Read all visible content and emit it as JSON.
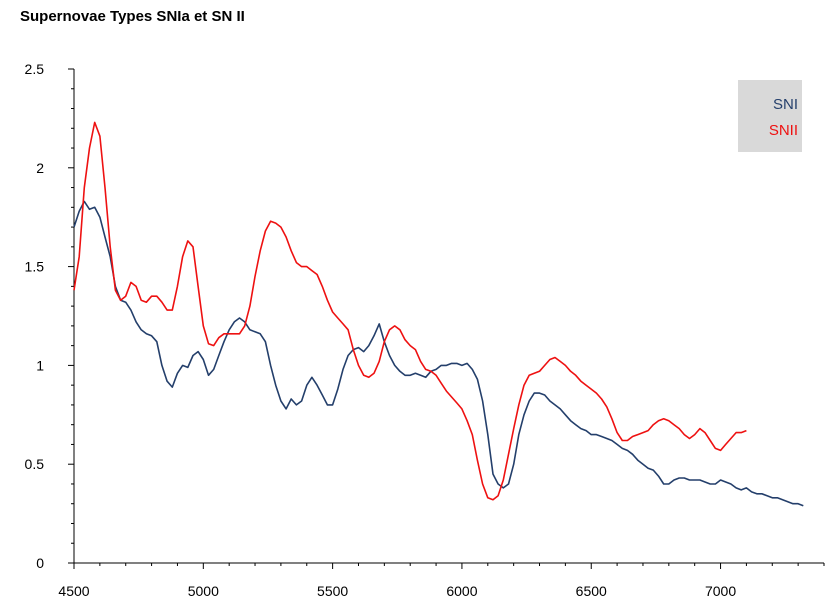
{
  "chart_data": {
    "type": "line",
    "title": "Supernovae Types SNIa et SN II",
    "xlabel": "",
    "ylabel": "",
    "xlim": [
      4500,
      7400
    ],
    "ylim": [
      0,
      2.5
    ],
    "x_ticks": [
      4500,
      5000,
      5500,
      6000,
      6500,
      7000
    ],
    "y_ticks": [
      0,
      0.5,
      1,
      1.5,
      2,
      2.5
    ],
    "y_tick_labels": [
      "0",
      "0.5",
      "1",
      "1.5",
      "2",
      "2.5"
    ],
    "grid": false,
    "legend_position": "top-right",
    "series": [
      {
        "name": "SNI",
        "color": "#243f6b",
        "points": [
          [
            4500,
            1.7
          ],
          [
            4520,
            1.78
          ],
          [
            4540,
            1.83
          ],
          [
            4560,
            1.79
          ],
          [
            4580,
            1.8
          ],
          [
            4600,
            1.75
          ],
          [
            4620,
            1.65
          ],
          [
            4640,
            1.55
          ],
          [
            4660,
            1.4
          ],
          [
            4680,
            1.33
          ],
          [
            4700,
            1.32
          ],
          [
            4720,
            1.28
          ],
          [
            4740,
            1.22
          ],
          [
            4760,
            1.18
          ],
          [
            4780,
            1.16
          ],
          [
            4800,
            1.15
          ],
          [
            4820,
            1.12
          ],
          [
            4840,
            1.0
          ],
          [
            4860,
            0.92
          ],
          [
            4880,
            0.89
          ],
          [
            4900,
            0.96
          ],
          [
            4920,
            1.0
          ],
          [
            4940,
            0.99
          ],
          [
            4960,
            1.05
          ],
          [
            4980,
            1.07
          ],
          [
            5000,
            1.03
          ],
          [
            5020,
            0.95
          ],
          [
            5040,
            0.98
          ],
          [
            5060,
            1.05
          ],
          [
            5080,
            1.12
          ],
          [
            5100,
            1.18
          ],
          [
            5120,
            1.22
          ],
          [
            5140,
            1.24
          ],
          [
            5160,
            1.22
          ],
          [
            5180,
            1.18
          ],
          [
            5200,
            1.17
          ],
          [
            5220,
            1.16
          ],
          [
            5240,
            1.12
          ],
          [
            5260,
            1.0
          ],
          [
            5280,
            0.9
          ],
          [
            5300,
            0.82
          ],
          [
            5320,
            0.78
          ],
          [
            5340,
            0.83
          ],
          [
            5360,
            0.8
          ],
          [
            5380,
            0.82
          ],
          [
            5400,
            0.9
          ],
          [
            5420,
            0.94
          ],
          [
            5440,
            0.9
          ],
          [
            5460,
            0.85
          ],
          [
            5480,
            0.8
          ],
          [
            5500,
            0.8
          ],
          [
            5520,
            0.88
          ],
          [
            5540,
            0.98
          ],
          [
            5560,
            1.05
          ],
          [
            5580,
            1.08
          ],
          [
            5600,
            1.09
          ],
          [
            5620,
            1.07
          ],
          [
            5640,
            1.1
          ],
          [
            5660,
            1.15
          ],
          [
            5680,
            1.21
          ],
          [
            5700,
            1.12
          ],
          [
            5720,
            1.05
          ],
          [
            5740,
            1.0
          ],
          [
            5760,
            0.97
          ],
          [
            5780,
            0.95
          ],
          [
            5800,
            0.95
          ],
          [
            5820,
            0.96
          ],
          [
            5840,
            0.95
          ],
          [
            5860,
            0.94
          ],
          [
            5880,
            0.97
          ],
          [
            5900,
            0.98
          ],
          [
            5920,
            1.0
          ],
          [
            5940,
            1.0
          ],
          [
            5960,
            1.01
          ],
          [
            5980,
            1.01
          ],
          [
            6000,
            1.0
          ],
          [
            6020,
            1.01
          ],
          [
            6040,
            0.98
          ],
          [
            6060,
            0.93
          ],
          [
            6080,
            0.82
          ],
          [
            6100,
            0.65
          ],
          [
            6120,
            0.45
          ],
          [
            6140,
            0.4
          ],
          [
            6160,
            0.38
          ],
          [
            6180,
            0.4
          ],
          [
            6200,
            0.5
          ],
          [
            6220,
            0.65
          ],
          [
            6240,
            0.75
          ],
          [
            6260,
            0.82
          ],
          [
            6280,
            0.86
          ],
          [
            6300,
            0.86
          ],
          [
            6320,
            0.85
          ],
          [
            6340,
            0.82
          ],
          [
            6360,
            0.8
          ],
          [
            6380,
            0.78
          ],
          [
            6400,
            0.75
          ],
          [
            6420,
            0.72
          ],
          [
            6440,
            0.7
          ],
          [
            6460,
            0.68
          ],
          [
            6480,
            0.67
          ],
          [
            6500,
            0.65
          ],
          [
            6520,
            0.65
          ],
          [
            6540,
            0.64
          ],
          [
            6560,
            0.63
          ],
          [
            6580,
            0.62
          ],
          [
            6600,
            0.6
          ],
          [
            6620,
            0.58
          ],
          [
            6640,
            0.57
          ],
          [
            6660,
            0.55
          ],
          [
            6680,
            0.52
          ],
          [
            6700,
            0.5
          ],
          [
            6720,
            0.48
          ],
          [
            6740,
            0.47
          ],
          [
            6760,
            0.44
          ],
          [
            6780,
            0.4
          ],
          [
            6800,
            0.4
          ],
          [
            6820,
            0.42
          ],
          [
            6840,
            0.43
          ],
          [
            6860,
            0.43
          ],
          [
            6880,
            0.42
          ],
          [
            6900,
            0.42
          ],
          [
            6920,
            0.42
          ],
          [
            6940,
            0.41
          ],
          [
            6960,
            0.4
          ],
          [
            6980,
            0.4
          ],
          [
            7000,
            0.42
          ],
          [
            7020,
            0.41
          ],
          [
            7040,
            0.4
          ],
          [
            7060,
            0.38
          ],
          [
            7080,
            0.37
          ],
          [
            7100,
            0.38
          ],
          [
            7120,
            0.36
          ],
          [
            7140,
            0.35
          ],
          [
            7160,
            0.35
          ],
          [
            7180,
            0.34
          ],
          [
            7200,
            0.33
          ],
          [
            7220,
            0.33
          ],
          [
            7240,
            0.32
          ],
          [
            7260,
            0.31
          ],
          [
            7280,
            0.3
          ],
          [
            7300,
            0.3
          ],
          [
            7320,
            0.29
          ]
        ]
      },
      {
        "name": "SNII",
        "color": "#ee1111",
        "points": [
          [
            4500,
            1.38
          ],
          [
            4520,
            1.55
          ],
          [
            4540,
            1.9
          ],
          [
            4560,
            2.1
          ],
          [
            4580,
            2.23
          ],
          [
            4600,
            2.16
          ],
          [
            4620,
            1.9
          ],
          [
            4640,
            1.6
          ],
          [
            4660,
            1.38
          ],
          [
            4680,
            1.33
          ],
          [
            4700,
            1.35
          ],
          [
            4720,
            1.42
          ],
          [
            4740,
            1.4
          ],
          [
            4760,
            1.33
          ],
          [
            4780,
            1.32
          ],
          [
            4800,
            1.35
          ],
          [
            4820,
            1.35
          ],
          [
            4840,
            1.32
          ],
          [
            4860,
            1.28
          ],
          [
            4880,
            1.28
          ],
          [
            4900,
            1.4
          ],
          [
            4920,
            1.55
          ],
          [
            4940,
            1.63
          ],
          [
            4960,
            1.6
          ],
          [
            4980,
            1.4
          ],
          [
            5000,
            1.2
          ],
          [
            5020,
            1.11
          ],
          [
            5040,
            1.1
          ],
          [
            5060,
            1.14
          ],
          [
            5080,
            1.16
          ],
          [
            5100,
            1.16
          ],
          [
            5120,
            1.16
          ],
          [
            5140,
            1.16
          ],
          [
            5160,
            1.2
          ],
          [
            5180,
            1.3
          ],
          [
            5200,
            1.45
          ],
          [
            5220,
            1.58
          ],
          [
            5240,
            1.68
          ],
          [
            5260,
            1.73
          ],
          [
            5280,
            1.72
          ],
          [
            5300,
            1.7
          ],
          [
            5320,
            1.65
          ],
          [
            5340,
            1.58
          ],
          [
            5360,
            1.52
          ],
          [
            5380,
            1.5
          ],
          [
            5400,
            1.5
          ],
          [
            5420,
            1.48
          ],
          [
            5440,
            1.46
          ],
          [
            5460,
            1.4
          ],
          [
            5480,
            1.33
          ],
          [
            5500,
            1.27
          ],
          [
            5520,
            1.24
          ],
          [
            5540,
            1.21
          ],
          [
            5560,
            1.18
          ],
          [
            5580,
            1.08
          ],
          [
            5600,
            1.0
          ],
          [
            5620,
            0.95
          ],
          [
            5640,
            0.94
          ],
          [
            5660,
            0.96
          ],
          [
            5680,
            1.02
          ],
          [
            5700,
            1.12
          ],
          [
            5720,
            1.18
          ],
          [
            5740,
            1.2
          ],
          [
            5760,
            1.18
          ],
          [
            5780,
            1.13
          ],
          [
            5800,
            1.1
          ],
          [
            5820,
            1.08
          ],
          [
            5840,
            1.02
          ],
          [
            5860,
            0.98
          ],
          [
            5880,
            0.97
          ],
          [
            5900,
            0.95
          ],
          [
            5920,
            0.91
          ],
          [
            5940,
            0.87
          ],
          [
            5960,
            0.84
          ],
          [
            5980,
            0.81
          ],
          [
            6000,
            0.78
          ],
          [
            6020,
            0.72
          ],
          [
            6040,
            0.65
          ],
          [
            6060,
            0.52
          ],
          [
            6080,
            0.4
          ],
          [
            6100,
            0.33
          ],
          [
            6120,
            0.32
          ],
          [
            6140,
            0.34
          ],
          [
            6160,
            0.42
          ],
          [
            6180,
            0.55
          ],
          [
            6200,
            0.68
          ],
          [
            6220,
            0.8
          ],
          [
            6240,
            0.9
          ],
          [
            6260,
            0.95
          ],
          [
            6280,
            0.96
          ],
          [
            6300,
            0.97
          ],
          [
            6320,
            1.0
          ],
          [
            6340,
            1.03
          ],
          [
            6360,
            1.04
          ],
          [
            6380,
            1.02
          ],
          [
            6400,
            1.0
          ],
          [
            6420,
            0.97
          ],
          [
            6440,
            0.95
          ],
          [
            6460,
            0.92
          ],
          [
            6480,
            0.9
          ],
          [
            6500,
            0.88
          ],
          [
            6520,
            0.86
          ],
          [
            6540,
            0.83
          ],
          [
            6560,
            0.79
          ],
          [
            6580,
            0.73
          ],
          [
            6600,
            0.66
          ],
          [
            6620,
            0.62
          ],
          [
            6640,
            0.62
          ],
          [
            6660,
            0.64
          ],
          [
            6680,
            0.65
          ],
          [
            6700,
            0.66
          ],
          [
            6720,
            0.67
          ],
          [
            6740,
            0.7
          ],
          [
            6760,
            0.72
          ],
          [
            6780,
            0.73
          ],
          [
            6800,
            0.72
          ],
          [
            6820,
            0.7
          ],
          [
            6840,
            0.68
          ],
          [
            6860,
            0.65
          ],
          [
            6880,
            0.63
          ],
          [
            6900,
            0.65
          ],
          [
            6920,
            0.68
          ],
          [
            6940,
            0.66
          ],
          [
            6960,
            0.62
          ],
          [
            6980,
            0.58
          ],
          [
            7000,
            0.57
          ],
          [
            7020,
            0.6
          ],
          [
            7040,
            0.63
          ],
          [
            7060,
            0.66
          ],
          [
            7080,
            0.66
          ],
          [
            7100,
            0.67
          ]
        ]
      }
    ]
  }
}
